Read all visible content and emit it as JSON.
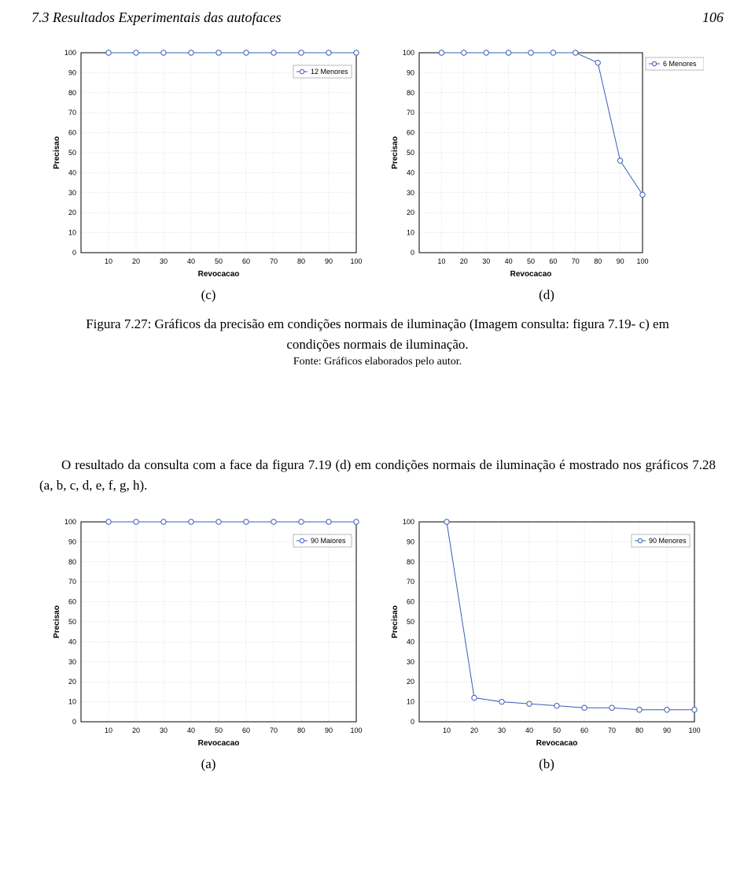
{
  "header": {
    "section": "7.3 Resultados Experimentais das autofaces",
    "page": "106"
  },
  "figure1": {
    "sub_left": "(c)",
    "sub_right": "(d)",
    "caption": "Figura 7.27: Gráficos da precisão em condições normais de iluminação (Imagem consulta: figura 7.19- c) em condições normais de iluminação.",
    "source": "Fonte: Gráficos elaborados pelo autor."
  },
  "body": "O resultado da consulta com a face da figura 7.19 (d) em condições normais de iluminação é mostrado nos gráficos 7.28 (a, b, c, d, e, f, g, h).",
  "figure2": {
    "sub_left": "(a)",
    "sub_right": "(b)"
  },
  "chart_common": {
    "x_label": "Revocacao",
    "y_label": "Precisao",
    "xlim": [
      0,
      100
    ],
    "ylim": [
      0,
      100
    ],
    "xtick_step": 10,
    "ytick_step": 10,
    "background": "#ffffff",
    "grid_color": "#bfbfbf",
    "axis_color": "#000000",
    "series_color": "#3a5fb5",
    "marker_style": "circle",
    "marker_size": 3.2,
    "tick_fontsize": 9,
    "label_fontsize": 10,
    "font_family": "Arial"
  },
  "chart_c": {
    "type": "line",
    "legend": "12 Menores",
    "legend_pos": "inside-top-right",
    "x": [
      10,
      20,
      30,
      40,
      50,
      60,
      70,
      80,
      90,
      100
    ],
    "y": [
      100,
      100,
      100,
      100,
      100,
      100,
      100,
      100,
      100,
      100
    ]
  },
  "chart_d": {
    "type": "line",
    "legend": "6 Menores",
    "legend_pos": "outside-right",
    "x": [
      10,
      20,
      30,
      40,
      50,
      60,
      70,
      80,
      90,
      100
    ],
    "y": [
      100,
      100,
      100,
      100,
      100,
      100,
      100,
      95,
      46,
      29
    ]
  },
  "chart_a2": {
    "type": "line",
    "legend": "90 Maiores",
    "legend_pos": "inside-top-right",
    "x": [
      10,
      20,
      30,
      40,
      50,
      60,
      70,
      80,
      90,
      100
    ],
    "y": [
      100,
      100,
      100,
      100,
      100,
      100,
      100,
      100,
      100,
      100
    ]
  },
  "chart_b2": {
    "type": "line",
    "legend": "90 Menores",
    "legend_pos": "inside-top-right",
    "x": [
      10,
      20,
      30,
      40,
      50,
      60,
      70,
      80,
      90,
      100
    ],
    "y": [
      100,
      12,
      10,
      9,
      8,
      7,
      7,
      6,
      6,
      6
    ]
  }
}
